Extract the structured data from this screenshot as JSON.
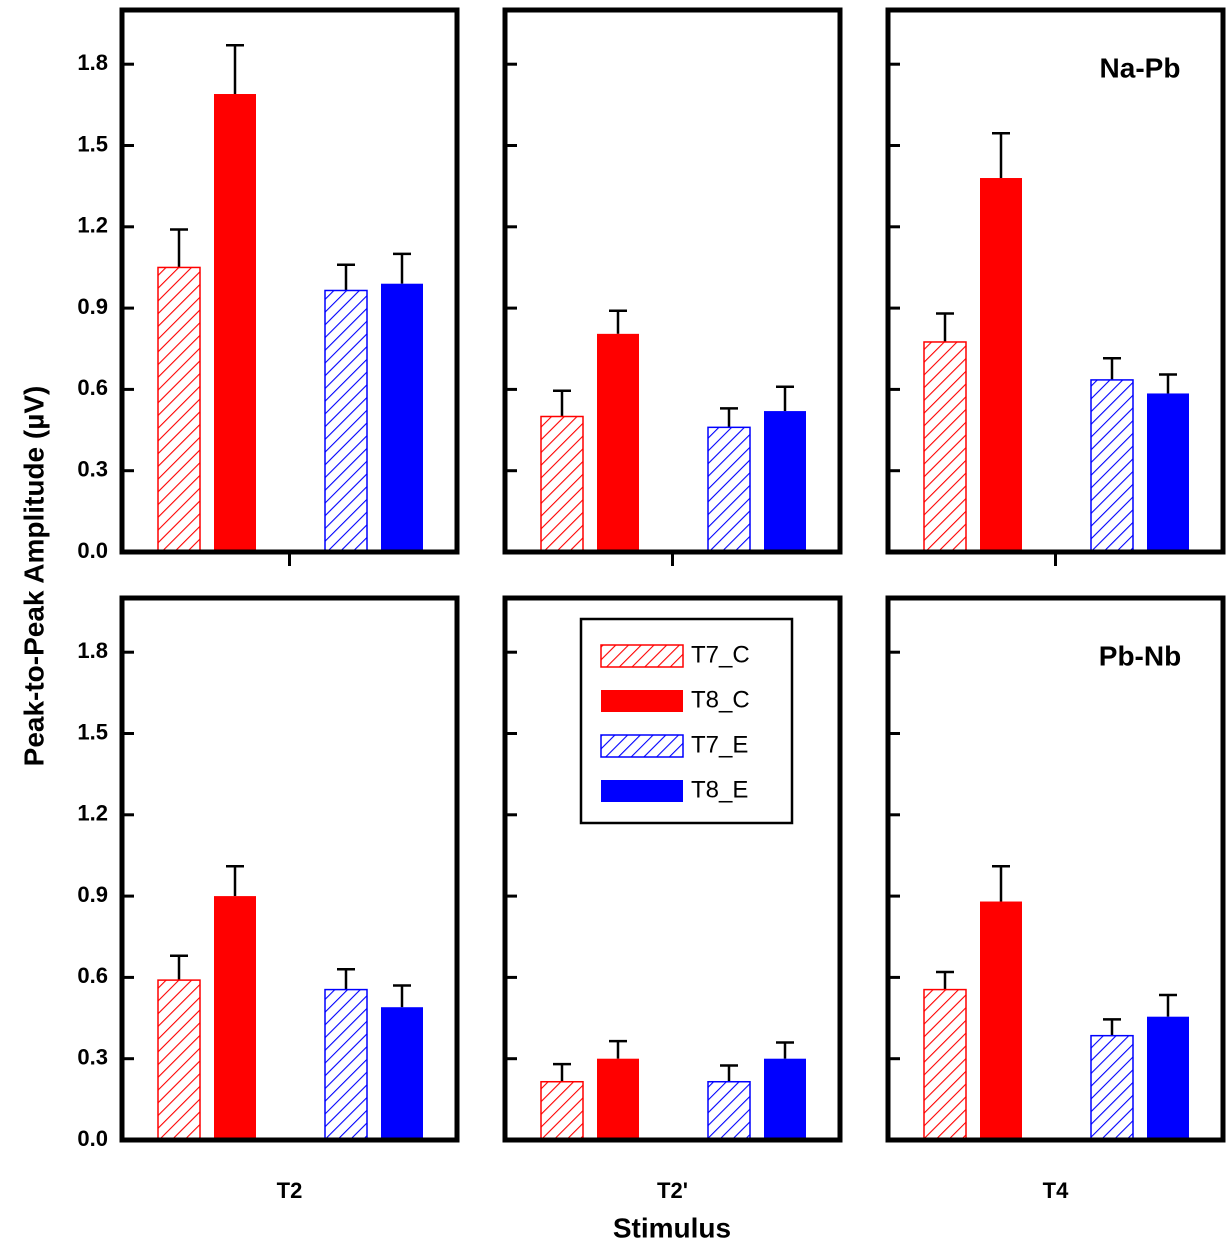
{
  "chart_data": {
    "type": "bar",
    "ylabel": "Peak-to-Peak Amplitude  (µV)",
    "xlabel": "Stimulus",
    "categories": [
      "T2",
      "T2'",
      "T4"
    ],
    "ylim": [
      0,
      2.0
    ],
    "yticks": [
      {
        "value": 0,
        "label": "0.0"
      },
      0.3,
      0.6,
      0.9,
      1.2,
      1.5,
      1.8
    ],
    "series": [
      {
        "name": "T7_C",
        "color": "#ff0000",
        "hatch": true
      },
      {
        "name": "T8_C",
        "color": "#ff0000",
        "hatch": false
      },
      {
        "name": "T7_E",
        "color": "#0000ff",
        "hatch": true
      },
      {
        "name": "T8_E",
        "color": "#0000ff",
        "hatch": false
      }
    ],
    "panels": [
      {
        "label": "Na-Pb",
        "series": [
          {
            "values": [
              1.05,
              0.5,
              0.775
            ],
            "errors": [
              0.14,
              0.095,
              0.105
            ]
          },
          {
            "values": [
              1.69,
              0.805,
              1.38
            ],
            "errors": [
              0.18,
              0.085,
              0.165
            ]
          },
          {
            "values": [
              0.965,
              0.46,
              0.635
            ],
            "errors": [
              0.095,
              0.07,
              0.08
            ]
          },
          {
            "values": [
              0.99,
              0.52,
              0.585
            ],
            "errors": [
              0.11,
              0.09,
              0.07
            ]
          }
        ]
      },
      {
        "label": "Pb-Nb",
        "series": [
          {
            "values": [
              0.59,
              0.215,
              0.555
            ],
            "errors": [
              0.09,
              0.065,
              0.065
            ]
          },
          {
            "values": [
              0.9,
              0.3,
              0.88
            ],
            "errors": [
              0.11,
              0.065,
              0.13
            ]
          },
          {
            "values": [
              0.555,
              0.215,
              0.385
            ],
            "errors": [
              0.075,
              0.06,
              0.06
            ]
          },
          {
            "values": [
              0.49,
              0.3,
              0.455
            ],
            "errors": [
              0.08,
              0.06,
              0.08
            ]
          }
        ]
      }
    ]
  }
}
